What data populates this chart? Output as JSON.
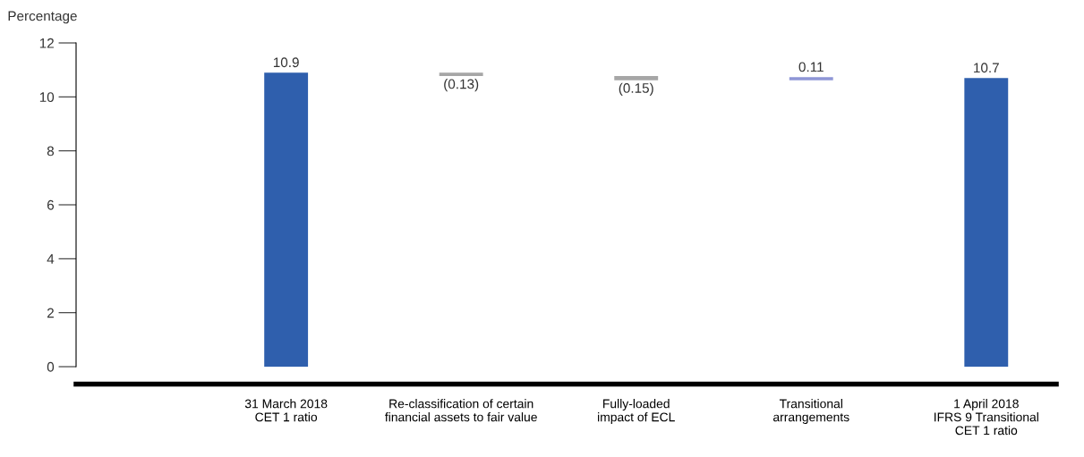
{
  "chart_data": {
    "type": "bar",
    "ylabel": "Percentage",
    "categories": [
      "31 March 2018\nCET 1 ratio",
      "Re-classification of certain\nfinancial assets to fair value",
      "Fully-loaded\nimpact of ECL",
      "Transitional\narrangements",
      "1 April 2018\nIFRS 9 Transitional\nCET 1 ratio"
    ],
    "values": [
      10.9,
      -0.13,
      -0.15,
      0.11,
      10.7
    ],
    "base": [
      0,
      10.9,
      10.77,
      10.62,
      0
    ],
    "colors": [
      "#2f5fad",
      "#a6a6a6",
      "#a6a6a6",
      "#8e96d6",
      "#2f5fad"
    ],
    "value_labels": [
      "10.9",
      "(0.13)",
      "(0.15)",
      "0.11",
      "10.7"
    ],
    "ylim": [
      0,
      12
    ],
    "yticks": [
      0,
      2,
      4,
      6,
      8,
      10,
      12
    ],
    "grid": false,
    "legend": false
  }
}
